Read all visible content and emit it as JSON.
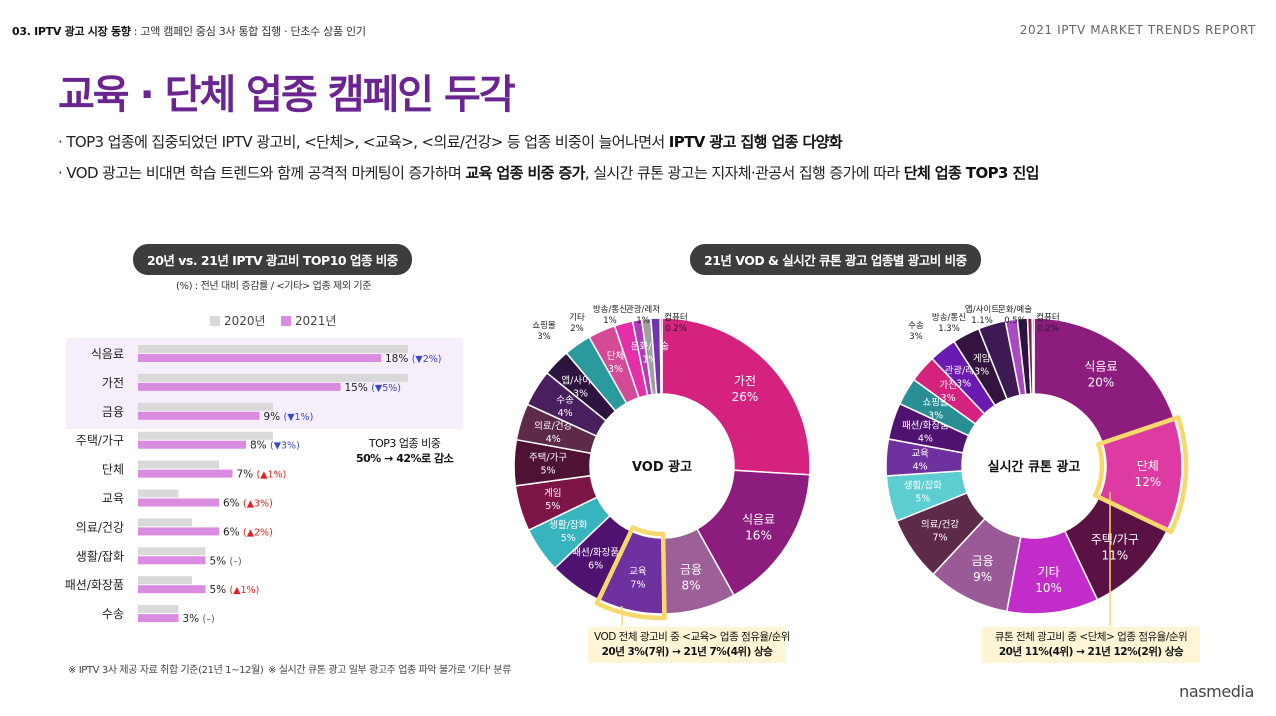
{
  "header": {
    "section": "03. IPTV 광고 시장 동향",
    "subtitle": " : 고액 캠페인 중심 3사 통합 집행 · 단초수 상품 인기",
    "report": "2021 IPTV MARKET TRENDS REPORT"
  },
  "title": "교육 · 단체 업종 캠페인 두각",
  "bullets": [
    {
      "prefix": "· TOP3 업종에 집중되었던 IPTV 광고비, <단체>, <교육>, <의료/건강> 등 업종 비중이 늘어나면서 ",
      "bold": "IPTV 광고 집행 업종 다양화",
      "mid": "",
      "bold2": "",
      "suffix": ""
    },
    {
      "prefix": "· VOD 광고는 비대면 학습 트렌드와 함께 공격적 마케팅이 증가하며 ",
      "bold": "교육 업종 비중 증가",
      "mid": ", 실시간 큐톤 광고는 지자체·관공서 집행 증가에 따라 ",
      "bold2": "단체 업종 TOP3 진입",
      "suffix": ""
    }
  ],
  "colors": {
    "accent": "#6b2591",
    "bar2020": "#d9d9d9",
    "bar2021": "#d98ce0",
    "up": "#e02020",
    "down": "#3a48c9",
    "highlight": "#f7d96b"
  },
  "chart_data": [
    {
      "type": "bar",
      "title": "20년 vs. 21년 IPTV 광고비 TOP10 업종 비중",
      "subtitle": "(%) : 전년 대비 증감률 / <기타> 업종 제외 기준",
      "categories": [
        "식음료",
        "가전",
        "금융",
        "주택/가구",
        "단체",
        "교육",
        "의료/건강",
        "생활/잡화",
        "패션/화장품",
        "수송"
      ],
      "series": [
        {
          "name": "2020년",
          "values": [
            20,
            20,
            10,
            10,
            6,
            3,
            4,
            5,
            4,
            3
          ]
        },
        {
          "name": "2021년",
          "values": [
            18,
            15,
            9,
            8,
            7,
            6,
            6,
            5,
            5,
            3
          ]
        }
      ],
      "value_labels": [
        "18%",
        "15%",
        "9%",
        "8%",
        "7%",
        "6%",
        "6%",
        "5%",
        "5%",
        "3%"
      ],
      "changes": [
        "(▼2%)",
        "(▼5%)",
        "(▼1%)",
        "(▼3%)",
        "(▲1%)",
        "(▲3%)",
        "(▲2%)",
        "(–)",
        "(▲1%)",
        "(–)"
      ],
      "change_dir": [
        "down",
        "down",
        "down",
        "down",
        "up",
        "up",
        "up",
        "flat",
        "up",
        "flat"
      ],
      "annotation": {
        "line1": "TOP3 업종 비중",
        "line2": "50% → 42%로 감소"
      },
      "orientation": "horizontal"
    },
    {
      "type": "pie",
      "title": "21년 VOD & 실시간 큐톤 광고 업종별 광고비 비중",
      "center_label": "VOD 광고",
      "slices": [
        {
          "label": "가전",
          "value": 26,
          "text": "26%",
          "color": "#d6227f"
        },
        {
          "label": "식음료",
          "value": 16,
          "text": "16%",
          "color": "#8c1d7e"
        },
        {
          "label": "금융",
          "value": 8,
          "text": "8%",
          "color": "#9c5f98"
        },
        {
          "label": "교육",
          "value": 7,
          "text": "7%",
          "color": "#6f30a0",
          "highlight": true
        },
        {
          "label": "패션/화장품",
          "value": 6,
          "text": "6%",
          "color": "#4f1270"
        },
        {
          "label": "생활/잡화",
          "value": 5,
          "text": "5%",
          "color": "#38b4be"
        },
        {
          "label": "게임",
          "value": 5,
          "text": "5%",
          "color": "#7d1546"
        },
        {
          "label": "주택/가구",
          "value": 5,
          "text": "5%",
          "color": "#4e1234"
        },
        {
          "label": "의료/건강",
          "value": 4,
          "text": "4%",
          "color": "#5d2a4a"
        },
        {
          "label": "수송",
          "value": 4,
          "text": "4%",
          "color": "#4a1f5f"
        },
        {
          "label": "앱/사이트",
          "value": 3,
          "text": "3%",
          "color": "#2d1440"
        },
        {
          "label": "쇼핑몰",
          "value": 3,
          "text": "3%",
          "color": "#2a9a9e"
        },
        {
          "label": "단체",
          "value": 3,
          "text": "3%",
          "color": "#d54a97"
        },
        {
          "label": "기타",
          "value": 2,
          "text": "2%",
          "color": "#e42faa"
        },
        {
          "label": "방송/통신",
          "value": 1,
          "text": "1%",
          "color": "#b13cba"
        },
        {
          "label": "문화/예술",
          "value": 1,
          "text": "1%",
          "color": "#a0a0a0"
        },
        {
          "label": "관광/레저",
          "value": 1,
          "text": "1%",
          "color": "#7034b0"
        },
        {
          "label": "컴퓨터",
          "value": 0.2,
          "text": "0.2%",
          "color": "#3c1f63"
        }
      ],
      "outer_labels": [
        {
          "label": "쇼핑몰",
          "text": "3%"
        },
        {
          "label": "기타",
          "text": "2%"
        },
        {
          "label": "방송/통신",
          "text": "1%"
        },
        {
          "label": "관광/레저",
          "text": "1%"
        },
        {
          "label": "컴퓨터",
          "text": "0.2%"
        }
      ],
      "callout": {
        "line1": "VOD 전체 광고비 중 <교육> 업종 점유율/순위",
        "line2": "20년 3%(7위) → 21년 7%(4위) 상승"
      }
    },
    {
      "type": "pie",
      "center_label": "실시간 큐톤 광고",
      "slices": [
        {
          "label": "식음료",
          "value": 20,
          "text": "20%",
          "color": "#8c1d7e"
        },
        {
          "label": "단체",
          "value": 12,
          "text": "12%",
          "color": "#dd3aa2",
          "highlight": true
        },
        {
          "label": "주택/가구",
          "value": 11,
          "text": "11%",
          "color": "#5a1245"
        },
        {
          "label": "기타",
          "value": 10,
          "text": "10%",
          "color": "#c22dc9"
        },
        {
          "label": "금융",
          "value": 9,
          "text": "9%",
          "color": "#9a5a97"
        },
        {
          "label": "의료/건강",
          "value": 7,
          "text": "7%",
          "color": "#5d2a4a"
        },
        {
          "label": "생활/잡화",
          "value": 5,
          "text": "5%",
          "color": "#5ccdd0"
        },
        {
          "label": "교육",
          "value": 4,
          "text": "4%",
          "color": "#6f30a0"
        },
        {
          "label": "패션/화장품",
          "value": 4,
          "text": "4%",
          "color": "#4f1270"
        },
        {
          "label": "쇼핑몰",
          "value": 3,
          "text": "3%",
          "color": "#2a8f94"
        },
        {
          "label": "가전",
          "value": 3,
          "text": "3%",
          "color": "#d6227f"
        },
        {
          "label": "관광/레저",
          "value": 3,
          "text": "3%",
          "color": "#6a1ab0"
        },
        {
          "label": "게임",
          "value": 3,
          "text": "3%",
          "color": "#35133f"
        },
        {
          "label": "수송",
          "value": 3,
          "text": "3%",
          "color": "#3e1a55"
        },
        {
          "label": "방송/통신",
          "value": 1.3,
          "text": "1.3%",
          "color": "#a84cc0"
        },
        {
          "label": "앱/사이트",
          "value": 1.1,
          "text": "1.1%",
          "color": "#2d1440"
        },
        {
          "label": "문화/예술",
          "value": 0.5,
          "text": "0.5%",
          "color": "#8a1a4a"
        },
        {
          "label": "컴퓨터",
          "value": 0.2,
          "text": "0.2%",
          "color": "#3c1f63"
        }
      ],
      "outer_labels": [
        {
          "label": "수송",
          "text": "3%"
        },
        {
          "label": "방송/통신",
          "text": "1.3%"
        },
        {
          "label": "앱/사이트",
          "text": "1.1%"
        },
        {
          "label": "문화/예술",
          "text": "0.5%"
        },
        {
          "label": "컴퓨터",
          "text": "0.2%"
        }
      ],
      "callout": {
        "line1": "큐톤 전체 광고비 중 <단체> 업종 점유율/순위",
        "line2": "20년 11%(4위) → 21년 12%(2위) 상승"
      }
    }
  ],
  "footnotes": {
    "note1": "※ IPTV 3사 제공 자료 취합 기준(21년 1~12월)",
    "note2": "※ 실시간 큐톤 광고 일부 광고주 업종 파악 불가로 '기타' 분류"
  },
  "brand": "nasmedia"
}
